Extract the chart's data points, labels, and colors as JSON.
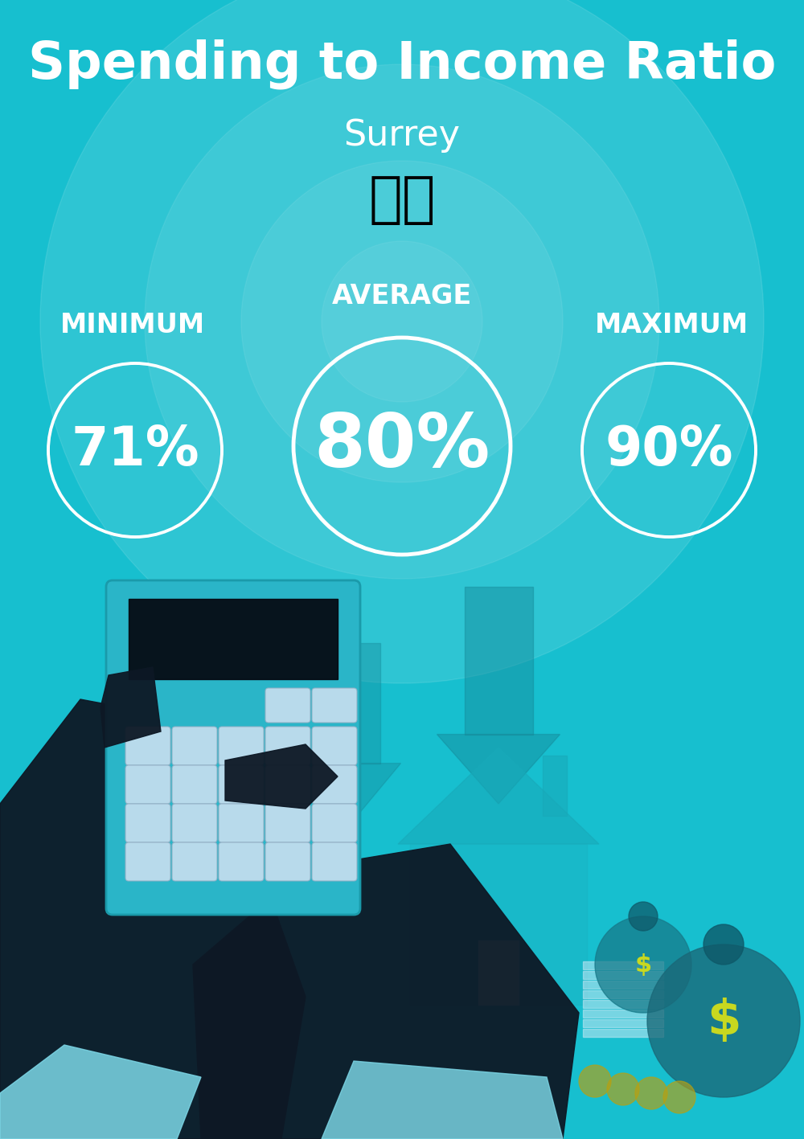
{
  "title": "Spending to Income Ratio",
  "subtitle": "Surrey",
  "bg_color": "#17bfcf",
  "bg_color_dark": "#0fa8ba",
  "text_color": "#ffffff",
  "min_label": "MINIMUM",
  "avg_label": "AVERAGE",
  "max_label": "MAXIMUM",
  "min_value": "71%",
  "avg_value": "80%",
  "max_value": "90%",
  "title_fontsize": 46,
  "subtitle_fontsize": 32,
  "label_fontsize": 24,
  "value_fontsize_small": 48,
  "value_fontsize_large": 66,
  "flag_emoji": "🇨🇦",
  "circle_color": "#ffffff",
  "arrow_color": "#15aabb",
  "house_color": "#1ab0c2",
  "dark_color": "#0d1825",
  "calc_color": "#2ab5c8",
  "cuff_color": "#7dd8e8",
  "money_bag_color": "#1a7888",
  "money_bag_large": "#1a6878",
  "dollar_color": "#c8d820",
  "stack_color": "#c8e8f5"
}
